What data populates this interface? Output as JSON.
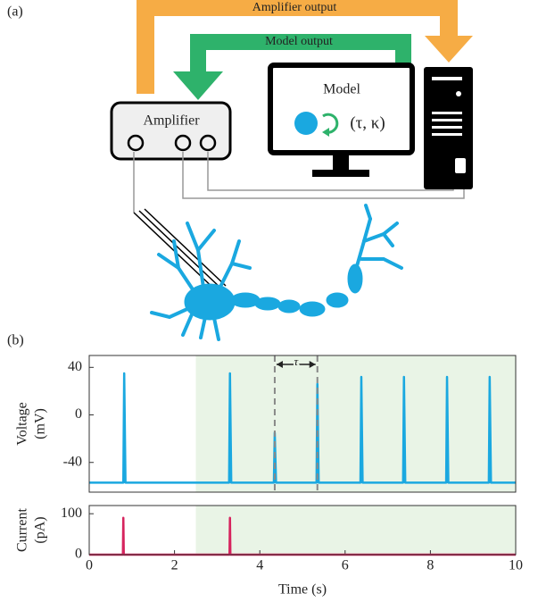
{
  "diagram": {
    "panel_label": "(a)",
    "amplifier_output": "Amplifier output",
    "model_output": "Model output",
    "model": "Model",
    "parameters": "(τ, κ)",
    "amplifier": "Amplifier"
  },
  "chart_data": [
    {
      "type": "line",
      "panel_label": "(b)",
      "ylabel": [
        "Voltage",
        "(mV)"
      ],
      "xlim": [
        0,
        10
      ],
      "ylim": [
        -65,
        50
      ],
      "yticks": [
        -40,
        0,
        40
      ],
      "shade": [
        2.5,
        10
      ],
      "shade_color": "#e9f4e6",
      "markers": [
        4.35,
        5.35
      ],
      "annotation": "τ",
      "series": [
        {
          "name": "Voltage",
          "color": "#1aa8e0",
          "x": [
            0,
            0.8,
            0.82,
            0.85,
            3.28,
            3.3,
            3.33,
            4.33,
            4.35,
            4.38,
            5.33,
            5.35,
            5.38,
            6.36,
            6.38,
            6.41,
            7.36,
            7.38,
            7.41,
            8.37,
            8.39,
            8.42,
            9.37,
            9.39,
            9.42,
            10
          ],
          "values": [
            -57,
            -57,
            35,
            -57,
            -57,
            35,
            -57,
            -57,
            -15,
            -57,
            -57,
            26,
            -57,
            -57,
            32,
            -57,
            -57,
            32,
            -57,
            -57,
            32,
            -57,
            -57,
            32,
            -57,
            -57
          ]
        }
      ]
    },
    {
      "type": "line",
      "ylabel": [
        "Current",
        "(pA)"
      ],
      "xlabel": "Time (s)",
      "xlim": [
        0,
        10
      ],
      "ylim": [
        0,
        120
      ],
      "yticks": [
        0,
        100
      ],
      "xticks": [
        0,
        2,
        4,
        6,
        8,
        10
      ],
      "shade": [
        2.5,
        10
      ],
      "shade_color": "#e9f4e6",
      "series": [
        {
          "name": "Current",
          "color": "#d6245e",
          "x": [
            0,
            0.79,
            0.8,
            0.81,
            3.29,
            3.3,
            3.31,
            10
          ],
          "values": [
            0,
            0,
            90,
            0,
            0,
            90,
            0,
            0
          ]
        }
      ]
    }
  ]
}
